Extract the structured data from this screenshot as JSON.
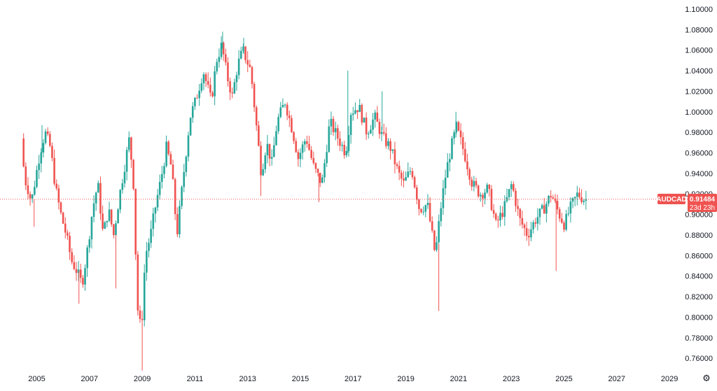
{
  "symbol": {
    "ticker": "AUDCAD",
    "last_price": "0.91484",
    "countdown": "23d 23h"
  },
  "colors": {
    "up": "#26a69a",
    "down": "#ef5350",
    "price_line": "#ef5350",
    "text": "#131722",
    "background": "#ffffff"
  },
  "chart_data": {
    "type": "candlestick",
    "timeframe": "monthly",
    "y_ticks": [
      "0.76000",
      "0.78000",
      "0.80000",
      "0.82000",
      "0.84000",
      "0.86000",
      "0.88000",
      "0.90000",
      "0.92000",
      "0.94000",
      "0.96000",
      "0.98000",
      "1.00000",
      "1.02000",
      "1.04000",
      "1.06000",
      "1.08000",
      "1.10000"
    ],
    "x_ticks": [
      "2005",
      "2007",
      "2009",
      "2011",
      "2013",
      "2015",
      "2017",
      "2019",
      "2021",
      "2023",
      "2025",
      "2027",
      "2029"
    ],
    "ylim": [
      0.75,
      1.1
    ],
    "xlim": [
      2004.4,
      2029.8
    ],
    "last_price_value": 0.91484,
    "path_points": [
      [
        2004.5,
        0.974
      ],
      [
        2004.62,
        0.935
      ],
      [
        2004.75,
        0.925
      ],
      [
        2004.88,
        0.912
      ],
      [
        2005.0,
        0.93
      ],
      [
        2005.2,
        0.96
      ],
      [
        2005.4,
        0.98
      ],
      [
        2005.6,
        0.965
      ],
      [
        2005.8,
        0.925
      ],
      [
        2006.0,
        0.9
      ],
      [
        2006.2,
        0.88
      ],
      [
        2006.4,
        0.855
      ],
      [
        2006.6,
        0.845
      ],
      [
        2006.8,
        0.832
      ],
      [
        2007.0,
        0.865
      ],
      [
        2007.2,
        0.905
      ],
      [
        2007.4,
        0.93
      ],
      [
        2007.6,
        0.88
      ],
      [
        2007.8,
        0.905
      ],
      [
        2008.0,
        0.88
      ],
      [
        2008.2,
        0.915
      ],
      [
        2008.4,
        0.945
      ],
      [
        2008.6,
        0.975
      ],
      [
        2008.75,
        0.93
      ],
      [
        2008.9,
        0.81
      ],
      [
        2009.05,
        0.785
      ],
      [
        2009.2,
        0.86
      ],
      [
        2009.4,
        0.88
      ],
      [
        2009.6,
        0.91
      ],
      [
        2009.8,
        0.935
      ],
      [
        2010.0,
        0.965
      ],
      [
        2010.2,
        0.945
      ],
      [
        2010.4,
        0.88
      ],
      [
        2010.55,
        0.915
      ],
      [
        2010.7,
        0.95
      ],
      [
        2010.9,
        0.995
      ],
      [
        2011.1,
        1.01
      ],
      [
        2011.4,
        1.04
      ],
      [
        2011.7,
        1.01
      ],
      [
        2011.9,
        1.05
      ],
      [
        2012.1,
        1.065
      ],
      [
        2012.3,
        1.035
      ],
      [
        2012.5,
        1.015
      ],
      [
        2012.7,
        1.045
      ],
      [
        2012.9,
        1.06
      ],
      [
        2013.2,
        1.04
      ],
      [
        2013.4,
        0.99
      ],
      [
        2013.6,
        0.94
      ],
      [
        2013.8,
        0.97
      ],
      [
        2014.0,
        0.95
      ],
      [
        2014.2,
        0.99
      ],
      [
        2014.5,
        1.01
      ],
      [
        2014.8,
        0.98
      ],
      [
        2015.0,
        0.955
      ],
      [
        2015.3,
        0.975
      ],
      [
        2015.6,
        0.945
      ],
      [
        2015.9,
        0.93
      ],
      [
        2016.2,
        0.99
      ],
      [
        2016.5,
        0.975
      ],
      [
        2016.8,
        0.96
      ],
      [
        2017.0,
        1.0
      ],
      [
        2017.3,
        1.005
      ],
      [
        2017.6,
        0.98
      ],
      [
        2017.9,
        0.995
      ],
      [
        2018.2,
        0.975
      ],
      [
        2018.5,
        0.965
      ],
      [
        2018.8,
        0.94
      ],
      [
        2019.0,
        0.93
      ],
      [
        2019.3,
        0.945
      ],
      [
        2019.6,
        0.905
      ],
      [
        2019.9,
        0.91
      ],
      [
        2020.2,
        0.86
      ],
      [
        2020.4,
        0.905
      ],
      [
        2020.6,
        0.94
      ],
      [
        2020.8,
        0.965
      ],
      [
        2021.0,
        0.985
      ],
      [
        2021.3,
        0.96
      ],
      [
        2021.6,
        0.93
      ],
      [
        2021.9,
        0.92
      ],
      [
        2022.2,
        0.925
      ],
      [
        2022.5,
        0.89
      ],
      [
        2022.8,
        0.905
      ],
      [
        2023.1,
        0.93
      ],
      [
        2023.4,
        0.895
      ],
      [
        2023.7,
        0.88
      ],
      [
        2024.0,
        0.895
      ],
      [
        2024.3,
        0.905
      ],
      [
        2024.6,
        0.92
      ],
      [
        2024.9,
        0.9
      ],
      [
        2025.1,
        0.89
      ],
      [
        2025.3,
        0.905
      ],
      [
        2025.6,
        0.92
      ],
      [
        2025.85,
        0.9148
      ]
    ],
    "spikes": [
      [
        2005.2,
        0.987,
        "up"
      ],
      [
        2004.9,
        0.888,
        "down"
      ],
      [
        2006.6,
        0.813,
        "down"
      ],
      [
        2009.0,
        0.748,
        "down"
      ],
      [
        2012.05,
        1.078,
        "up"
      ],
      [
        2012.85,
        1.072,
        "up"
      ],
      [
        2013.5,
        0.918,
        "down"
      ],
      [
        2016.8,
        1.04,
        "up"
      ],
      [
        2018.1,
        1.02,
        "up"
      ],
      [
        2020.25,
        0.806,
        "down"
      ],
      [
        2020.9,
        1.0,
        "up"
      ],
      [
        2024.7,
        0.845,
        "down"
      ],
      [
        2015.7,
        0.912,
        "down"
      ],
      [
        2008.0,
        0.828,
        "down"
      ]
    ]
  }
}
